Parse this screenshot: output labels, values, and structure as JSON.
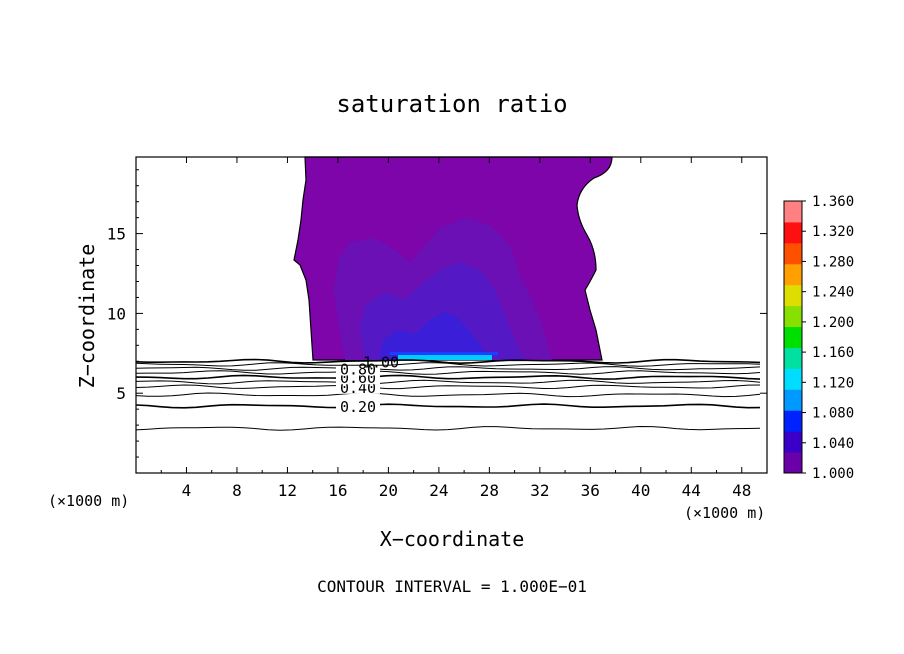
{
  "chart_data": {
    "type": "contour",
    "title": "saturation ratio",
    "xlabel": "X−coordinate",
    "ylabel": "Z−coordinate",
    "x_unit_left": "(×1000 m)",
    "x_unit_right": "(×1000 m)",
    "footer": "CONTOUR INTERVAL = 1.000E−01",
    "xlim": [
      0,
      50
    ],
    "ylim": [
      0,
      19.8
    ],
    "x_ticks": [
      4,
      8,
      12,
      16,
      20,
      24,
      28,
      32,
      36,
      40,
      44,
      48
    ],
    "x_tick_labels": [
      "4",
      "8",
      "12",
      "16",
      "20",
      "24",
      "28",
      "32",
      "36",
      "40",
      "44",
      "48"
    ],
    "y_ticks": [
      5,
      10,
      15
    ],
    "y_tick_labels": [
      "5",
      "10",
      "15"
    ],
    "colorbar": {
      "min": 1.0,
      "max": 1.36,
      "labels": [
        "1.360",
        "1.320",
        "1.280",
        "1.240",
        "1.200",
        "1.160",
        "1.120",
        "1.080",
        "1.040",
        "1.000"
      ],
      "colors": [
        "#6a00a8",
        "#3a00c8",
        "#0022ff",
        "#0099ff",
        "#00ddff",
        "#00e0a0",
        "#00e000",
        "#88e000",
        "#dddd00",
        "#ffa000",
        "#ff5000",
        "#ff1010",
        "#ff8080"
      ]
    },
    "contour_lines": [
      {
        "level": 0.2,
        "label": "0.20",
        "z": 4.2
      },
      {
        "level": 0.3,
        "z": 4.9
      },
      {
        "level": 0.4,
        "label": "0.40",
        "z": 5.4
      },
      {
        "level": 0.5,
        "z": 5.7
      },
      {
        "level": 0.6,
        "label": "0.60",
        "z": 6.0
      },
      {
        "level": 0.7,
        "z": 6.3
      },
      {
        "level": 0.8,
        "label": "0.80",
        "z": 6.55
      },
      {
        "level": 0.9,
        "z": 6.8
      },
      {
        "level": 1.0,
        "label": "1.00",
        "z": 7.0
      },
      {
        "level": 0.1,
        "z": 2.8
      }
    ],
    "supersaturated_region": {
      "x_range": [
        13.5,
        37.5
      ],
      "z_range": [
        7.1,
        19.8
      ],
      "core_value": 1.02,
      "peak_value": 1.1,
      "peak_x_range": [
        21,
        28
      ]
    }
  }
}
